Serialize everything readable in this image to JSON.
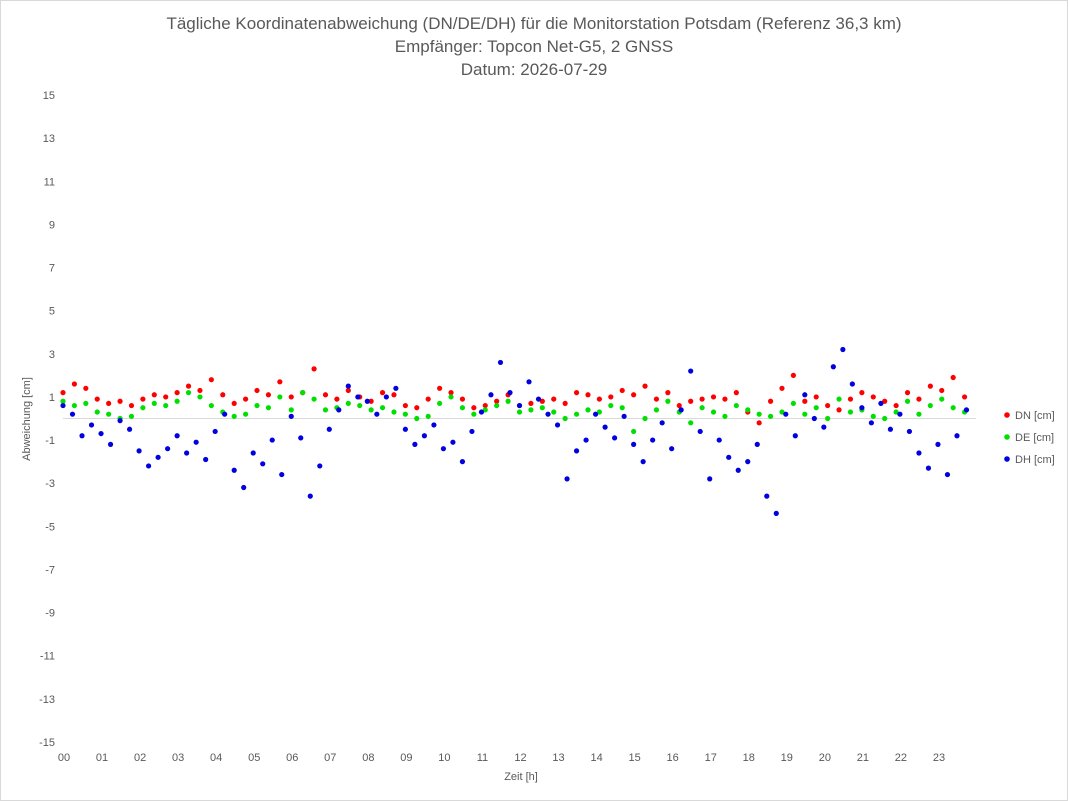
{
  "chart_data": {
    "type": "scatter",
    "title": [
      "Tägliche Koordinatenabweichung (DN/DE/DH) für die Monitorstation Potsdam (Referenz 36,3 km)",
      "Empfänger: Topcon Net-G5, 2 GNSS",
      "Datum: 2026-07-29"
    ],
    "xlabel": "Zeit [h]",
    "ylabel": "Abweichung [cm]",
    "xlim": [
      0,
      24
    ],
    "ylim": [
      -15,
      15
    ],
    "x_ticks": [
      "00",
      "01",
      "02",
      "03",
      "04",
      "05",
      "06",
      "07",
      "08",
      "09",
      "10",
      "11",
      "12",
      "13",
      "14",
      "15",
      "16",
      "17",
      "18",
      "19",
      "20",
      "21",
      "22",
      "23"
    ],
    "y_ticks": [
      15,
      13,
      11,
      9,
      7,
      5,
      3,
      1,
      -1,
      -3,
      -5,
      -7,
      -9,
      -11,
      -13,
      -15
    ],
    "grid": false,
    "legend_position": "right",
    "series": [
      {
        "name": "DN [cm]",
        "color": "#ff0000",
        "x": [
          0.0,
          0.3,
          0.6,
          0.9,
          1.2,
          1.5,
          1.8,
          2.1,
          2.4,
          2.7,
          3.0,
          3.3,
          3.6,
          3.9,
          4.2,
          4.5,
          4.8,
          5.1,
          5.4,
          5.7,
          6.0,
          6.3,
          6.6,
          6.9,
          7.2,
          7.5,
          7.8,
          8.1,
          8.4,
          8.7,
          9.0,
          9.3,
          9.6,
          9.9,
          10.2,
          10.5,
          10.8,
          11.1,
          11.4,
          11.7,
          12.0,
          12.3,
          12.6,
          12.9,
          13.2,
          13.5,
          13.8,
          14.1,
          14.4,
          14.7,
          15.0,
          15.3,
          15.6,
          15.9,
          16.2,
          16.5,
          16.8,
          17.1,
          17.4,
          17.7,
          18.0,
          18.3,
          18.6,
          18.9,
          19.2,
          19.5,
          19.8,
          20.1,
          20.4,
          20.7,
          21.0,
          21.3,
          21.6,
          21.9,
          22.2,
          22.5,
          22.8,
          23.1,
          23.4,
          23.7
        ],
        "y": [
          1.2,
          1.6,
          1.4,
          0.9,
          0.7,
          0.8,
          0.6,
          0.9,
          1.1,
          1.0,
          1.2,
          1.5,
          1.3,
          1.8,
          1.1,
          0.7,
          0.9,
          1.3,
          1.1,
          1.7,
          1.0,
          1.2,
          2.3,
          1.1,
          0.9,
          1.3,
          1.0,
          0.8,
          1.2,
          1.1,
          0.6,
          0.5,
          0.9,
          1.4,
          1.2,
          0.9,
          0.5,
          0.6,
          0.8,
          1.1,
          0.6,
          0.7,
          0.8,
          0.9,
          0.7,
          1.2,
          1.1,
          0.9,
          1.0,
          1.3,
          1.1,
          1.5,
          0.9,
          1.2,
          0.6,
          0.8,
          0.9,
          1.0,
          0.9,
          1.2,
          0.3,
          -0.2,
          0.8,
          1.4,
          2.0,
          0.8,
          1.0,
          0.6,
          0.4,
          0.9,
          1.2,
          1.0,
          0.8,
          0.6,
          1.2,
          0.9,
          1.5,
          1.3,
          1.9,
          1.0
        ]
      },
      {
        "name": "DE [cm]",
        "color": "#00e000",
        "x": [
          0.0,
          0.3,
          0.6,
          0.9,
          1.2,
          1.5,
          1.8,
          2.1,
          2.4,
          2.7,
          3.0,
          3.3,
          3.6,
          3.9,
          4.2,
          4.5,
          4.8,
          5.1,
          5.4,
          5.7,
          6.0,
          6.3,
          6.6,
          6.9,
          7.2,
          7.5,
          7.8,
          8.1,
          8.4,
          8.7,
          9.0,
          9.3,
          9.6,
          9.9,
          10.2,
          10.5,
          10.8,
          11.1,
          11.4,
          11.7,
          12.0,
          12.3,
          12.6,
          12.9,
          13.2,
          13.5,
          13.8,
          14.1,
          14.4,
          14.7,
          15.0,
          15.3,
          15.6,
          15.9,
          16.2,
          16.5,
          16.8,
          17.1,
          17.4,
          17.7,
          18.0,
          18.3,
          18.6,
          18.9,
          19.2,
          19.5,
          19.8,
          20.1,
          20.4,
          20.7,
          21.0,
          21.3,
          21.6,
          21.9,
          22.2,
          22.5,
          22.8,
          23.1,
          23.4,
          23.7
        ],
        "y": [
          0.8,
          0.6,
          0.7,
          0.3,
          0.2,
          0.0,
          0.1,
          0.5,
          0.7,
          0.6,
          0.8,
          1.2,
          1.0,
          0.6,
          0.3,
          0.1,
          0.2,
          0.6,
          0.5,
          1.0,
          0.4,
          1.2,
          0.9,
          0.4,
          0.5,
          0.7,
          0.6,
          0.4,
          0.5,
          0.3,
          0.2,
          0.0,
          0.1,
          0.7,
          1.0,
          0.5,
          0.2,
          0.4,
          0.6,
          0.8,
          0.3,
          0.4,
          0.5,
          0.3,
          0.0,
          0.2,
          0.4,
          0.3,
          0.6,
          0.5,
          -0.6,
          0.0,
          0.4,
          0.8,
          0.3,
          -0.2,
          0.5,
          0.3,
          0.1,
          0.6,
          0.4,
          0.2,
          0.1,
          0.3,
          0.7,
          0.2,
          0.5,
          0.0,
          0.9,
          0.3,
          0.4,
          0.1,
          0.0,
          0.3,
          0.8,
          0.2,
          0.6,
          0.9,
          0.5,
          0.3
        ]
      },
      {
        "name": "DH [cm]",
        "color": "#0000e0",
        "x": [
          0.0,
          0.25,
          0.5,
          0.75,
          1.0,
          1.25,
          1.5,
          1.75,
          2.0,
          2.25,
          2.5,
          2.75,
          3.0,
          3.25,
          3.5,
          3.75,
          4.0,
          4.25,
          4.5,
          4.75,
          5.0,
          5.25,
          5.5,
          5.75,
          6.0,
          6.25,
          6.5,
          6.75,
          7.0,
          7.25,
          7.5,
          7.75,
          8.0,
          8.25,
          8.5,
          8.75,
          9.0,
          9.25,
          9.5,
          9.75,
          10.0,
          10.25,
          10.5,
          10.75,
          11.0,
          11.25,
          11.5,
          11.75,
          12.0,
          12.25,
          12.5,
          12.75,
          13.0,
          13.25,
          13.5,
          13.75,
          14.0,
          14.25,
          14.5,
          14.75,
          15.0,
          15.25,
          15.5,
          15.75,
          16.0,
          16.25,
          16.5,
          16.75,
          17.0,
          17.25,
          17.5,
          17.75,
          18.0,
          18.25,
          18.5,
          18.75,
          19.0,
          19.25,
          19.5,
          19.75,
          20.0,
          20.25,
          20.5,
          20.75,
          21.0,
          21.25,
          21.5,
          21.75,
          22.0,
          22.25,
          22.5,
          22.75,
          23.0,
          23.25,
          23.5,
          23.75
        ],
        "y": [
          0.6,
          0.2,
          -0.8,
          -0.3,
          -0.7,
          -1.2,
          -0.1,
          -0.5,
          -1.5,
          -2.2,
          -1.8,
          -1.4,
          -0.8,
          -1.6,
          -1.1,
          -1.9,
          -0.6,
          0.2,
          -2.4,
          -3.2,
          -1.6,
          -2.1,
          -1.0,
          -2.6,
          0.1,
          -0.9,
          -3.6,
          -2.2,
          -0.5,
          0.4,
          1.5,
          1.0,
          0.8,
          0.2,
          1.0,
          1.4,
          -0.5,
          -1.2,
          -0.8,
          -0.3,
          -1.4,
          -1.1,
          -2.0,
          -0.6,
          0.3,
          1.1,
          2.6,
          1.2,
          0.6,
          1.7,
          0.9,
          0.2,
          -0.3,
          -2.8,
          -1.5,
          -1.0,
          0.2,
          -0.4,
          -0.9,
          0.1,
          -1.2,
          -2.0,
          -1.0,
          -0.2,
          -1.4,
          0.4,
          2.2,
          -0.6,
          -2.8,
          -1.0,
          -1.8,
          -2.4,
          -2.0,
          -1.2,
          -3.6,
          -4.4,
          0.2,
          -0.8,
          1.1,
          0.0,
          -0.4,
          2.4,
          3.2,
          1.6,
          0.5,
          -0.2,
          0.7,
          -0.5,
          0.2,
          -0.6,
          -1.6,
          -2.3,
          -1.2,
          -2.6,
          -0.8,
          0.4
        ]
      }
    ]
  }
}
